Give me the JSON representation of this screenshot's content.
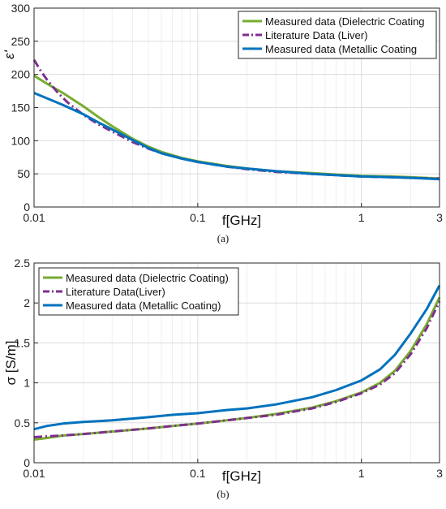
{
  "chart_data": [
    {
      "type": "line",
      "caption": "(a)",
      "xlabel": "f[GHz]",
      "ylabel": "ε'",
      "xscale": "log",
      "xlim": [
        0.01,
        3
      ],
      "ylim": [
        0,
        300
      ],
      "xticks": [
        0.01,
        0.1,
        1,
        3
      ],
      "xtick_labels": [
        "0.01",
        "0.1",
        "1",
        "3"
      ],
      "yticks": [
        0,
        50,
        100,
        150,
        200,
        250,
        300
      ],
      "ytick_labels": [
        "0",
        "50",
        "100",
        "150",
        "200",
        "250",
        "300"
      ],
      "grid": true,
      "legend_position": "top-right",
      "series": [
        {
          "name": "Measured data (Dielectric Coating",
          "color": "#77AC30",
          "style": "solid",
          "x": [
            0.01,
            0.012,
            0.015,
            0.02,
            0.025,
            0.03,
            0.04,
            0.05,
            0.06,
            0.08,
            0.1,
            0.15,
            0.2,
            0.3,
            0.5,
            0.7,
            1,
            1.5,
            2,
            3
          ],
          "y": [
            198,
            186,
            172,
            152,
            135,
            122,
            103,
            91,
            83,
            74,
            69,
            62,
            58,
            54,
            51,
            49,
            47,
            46,
            45,
            43
          ]
        },
        {
          "name": "Literature Data (Liver)",
          "color": "#7E2F8E",
          "style": "dashdot",
          "x": [
            0.01,
            0.011,
            0.012,
            0.014,
            0.016,
            0.02,
            0.025,
            0.03,
            0.04,
            0.05,
            0.06,
            0.08,
            0.1,
            0.15,
            0.2,
            0.3,
            0.5,
            0.7,
            1,
            1.5,
            2,
            3
          ],
          "y": [
            222,
            205,
            192,
            172,
            158,
            139,
            124,
            114,
            98,
            88,
            81,
            73,
            68,
            61,
            57,
            53,
            50,
            48,
            46,
            45,
            44,
            43
          ]
        },
        {
          "name": "Measured data (Metallic Coating",
          "color": "#0072BD",
          "style": "solid",
          "x": [
            0.01,
            0.012,
            0.015,
            0.02,
            0.025,
            0.03,
            0.04,
            0.05,
            0.06,
            0.08,
            0.1,
            0.15,
            0.2,
            0.3,
            0.5,
            0.7,
            1,
            1.5,
            2,
            3
          ],
          "y": [
            172,
            164,
            154,
            140,
            127,
            117,
            101,
            89,
            81,
            73,
            68,
            61,
            58,
            54,
            50,
            48,
            46,
            45,
            44,
            42
          ]
        }
      ]
    },
    {
      "type": "line",
      "caption": "(b)",
      "xlabel": "f[GHz]",
      "ylabel": "σ [S/m]",
      "xscale": "log",
      "xlim": [
        0.01,
        3
      ],
      "ylim": [
        0,
        2.5
      ],
      "xticks": [
        0.01,
        0.1,
        1,
        3
      ],
      "xtick_labels": [
        "0.01",
        "0.1",
        "1",
        "3"
      ],
      "yticks": [
        0,
        0.5,
        1,
        1.5,
        2,
        2.5
      ],
      "ytick_labels": [
        "0",
        "0.5",
        "1",
        "1.5",
        "2",
        "2.5"
      ],
      "grid": true,
      "legend_position": "top-left",
      "series": [
        {
          "name": "Measured data (Dielectric Coating)",
          "color": "#77AC30",
          "style": "solid",
          "x": [
            0.01,
            0.012,
            0.015,
            0.02,
            0.03,
            0.05,
            0.07,
            0.1,
            0.15,
            0.2,
            0.3,
            0.5,
            0.7,
            1,
            1.3,
            1.6,
            2,
            2.5,
            3
          ],
          "y": [
            0.29,
            0.31,
            0.34,
            0.36,
            0.39,
            0.43,
            0.46,
            0.49,
            0.53,
            0.56,
            0.61,
            0.69,
            0.77,
            0.88,
            1.0,
            1.15,
            1.4,
            1.73,
            2.07
          ]
        },
        {
          "name": "Literature Data(Liver)",
          "color": "#7E2F8E",
          "style": "dashdot",
          "x": [
            0.01,
            0.012,
            0.015,
            0.02,
            0.03,
            0.05,
            0.07,
            0.1,
            0.15,
            0.2,
            0.3,
            0.5,
            0.7,
            1,
            1.3,
            1.6,
            2,
            2.5,
            3
          ],
          "y": [
            0.32,
            0.33,
            0.34,
            0.36,
            0.39,
            0.43,
            0.46,
            0.49,
            0.53,
            0.56,
            0.6,
            0.68,
            0.76,
            0.87,
            0.98,
            1.12,
            1.36,
            1.68,
            2.02
          ]
        },
        {
          "name": "Measured data (Metallic Coating)",
          "color": "#0072BD",
          "style": "solid",
          "x": [
            0.01,
            0.012,
            0.015,
            0.02,
            0.03,
            0.05,
            0.07,
            0.1,
            0.15,
            0.2,
            0.3,
            0.5,
            0.7,
            1,
            1.3,
            1.6,
            2,
            2.5,
            3
          ],
          "y": [
            0.42,
            0.46,
            0.49,
            0.51,
            0.53,
            0.57,
            0.6,
            0.62,
            0.66,
            0.68,
            0.73,
            0.82,
            0.91,
            1.03,
            1.17,
            1.35,
            1.62,
            1.92,
            2.22
          ]
        }
      ]
    }
  ]
}
